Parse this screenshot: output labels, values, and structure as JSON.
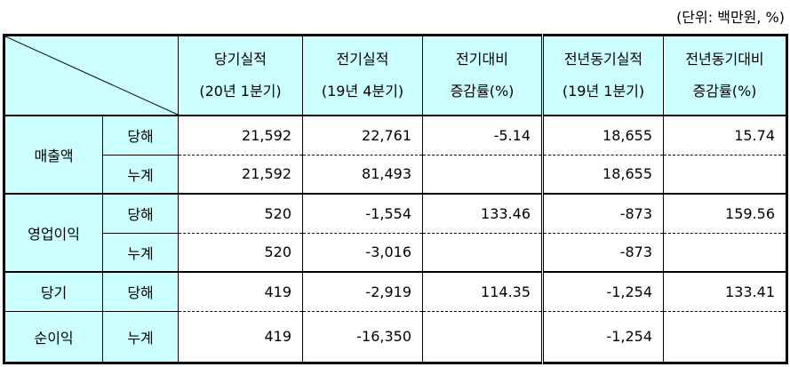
{
  "unit_note": "(단위: 백만원, %)",
  "table": {
    "columns": [
      {
        "line1": "당기실적",
        "line2": "(20년 1분기)"
      },
      {
        "line1": "전기실적",
        "line2": "(19년 4분기)"
      },
      {
        "line1": "전기대비",
        "line2": "증감률(%)"
      },
      {
        "line1": "전년동기실적",
        "line2": "(19년 1분기)"
      },
      {
        "line1": "전년동기대비",
        "line2": "증감률(%)"
      }
    ],
    "groups": [
      {
        "label": [
          "매출액"
        ],
        "rows": [
          {
            "sub": "당해",
            "values": [
              "21,592",
              "22,761",
              "-5.14",
              "18,655",
              "15.74"
            ]
          },
          {
            "sub": "누계",
            "values": [
              "21,592",
              "81,493",
              null,
              "18,655",
              null
            ]
          }
        ]
      },
      {
        "label": [
          "영업이익"
        ],
        "rows": [
          {
            "sub": "당해",
            "values": [
              "520",
              "-1,554",
              "133.46",
              "-873",
              "159.56"
            ]
          },
          {
            "sub": "누계",
            "values": [
              "520",
              "-3,016",
              null,
              "-873",
              null
            ]
          }
        ]
      },
      {
        "label": [
          "당기",
          "순이익"
        ],
        "rows": [
          {
            "sub": "당해",
            "values": [
              "419",
              "-2,919",
              "114.35",
              "-1,254",
              "133.41"
            ]
          },
          {
            "sub": "누계",
            "values": [
              "419",
              "-16,350",
              null,
              "-1,254",
              null
            ]
          }
        ]
      }
    ]
  }
}
